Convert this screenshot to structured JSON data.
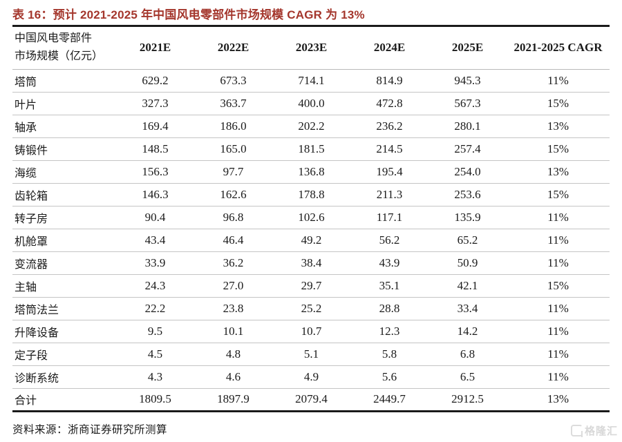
{
  "title": "表 16：预计 2021-2025 年中国风电零部件市场规模 CAGR 为 13%",
  "colors": {
    "title_red": "#A4362C",
    "border_dark": "#1a1a1a",
    "row_separator": "#c4c4c4",
    "background": "#ffffff",
    "watermark_gray": "#d8d8d8"
  },
  "table": {
    "header_line1": "中国风电零部件",
    "header_line2": "市场规模（亿元）",
    "columns": [
      "2021E",
      "2022E",
      "2023E",
      "2024E",
      "2025E",
      "2021-2025 CAGR"
    ],
    "rows": [
      {
        "label": "塔筒",
        "values": [
          "629.2",
          "673.3",
          "714.1",
          "814.9",
          "945.3",
          "11%"
        ]
      },
      {
        "label": "叶片",
        "values": [
          "327.3",
          "363.7",
          "400.0",
          "472.8",
          "567.3",
          "15%"
        ]
      },
      {
        "label": "轴承",
        "values": [
          "169.4",
          "186.0",
          "202.2",
          "236.2",
          "280.1",
          "13%"
        ]
      },
      {
        "label": "铸锻件",
        "values": [
          "148.5",
          "165.0",
          "181.5",
          "214.5",
          "257.4",
          "15%"
        ]
      },
      {
        "label": "海缆",
        "values": [
          "156.3",
          "97.7",
          "136.8",
          "195.4",
          "254.0",
          "13%"
        ]
      },
      {
        "label": "齿轮箱",
        "values": [
          "146.3",
          "162.6",
          "178.8",
          "211.3",
          "253.6",
          "15%"
        ]
      },
      {
        "label": "转子房",
        "values": [
          "90.4",
          "96.8",
          "102.6",
          "117.1",
          "135.9",
          "11%"
        ]
      },
      {
        "label": "机舱罩",
        "values": [
          "43.4",
          "46.4",
          "49.2",
          "56.2",
          "65.2",
          "11%"
        ]
      },
      {
        "label": "变流器",
        "values": [
          "33.9",
          "36.2",
          "38.4",
          "43.9",
          "50.9",
          "11%"
        ]
      },
      {
        "label": "主轴",
        "values": [
          "24.3",
          "27.0",
          "29.7",
          "35.1",
          "42.1",
          "15%"
        ]
      },
      {
        "label": "塔筒法兰",
        "values": [
          "22.2",
          "23.8",
          "25.2",
          "28.8",
          "33.4",
          "11%"
        ]
      },
      {
        "label": "升降设备",
        "values": [
          "9.5",
          "10.1",
          "10.7",
          "12.3",
          "14.2",
          "11%"
        ]
      },
      {
        "label": "定子段",
        "values": [
          "4.5",
          "4.8",
          "5.1",
          "5.8",
          "6.8",
          "11%"
        ]
      },
      {
        "label": "诊断系统",
        "values": [
          "4.3",
          "4.6",
          "4.9",
          "5.6",
          "6.5",
          "11%"
        ]
      },
      {
        "label": "合计",
        "values": [
          "1809.5",
          "1897.9",
          "2079.4",
          "2449.7",
          "2912.5",
          "13%"
        ]
      }
    ]
  },
  "source_note": "资料来源：浙商证券研究所测算",
  "watermark": {
    "icon": "g-logo",
    "text": "格隆汇"
  }
}
